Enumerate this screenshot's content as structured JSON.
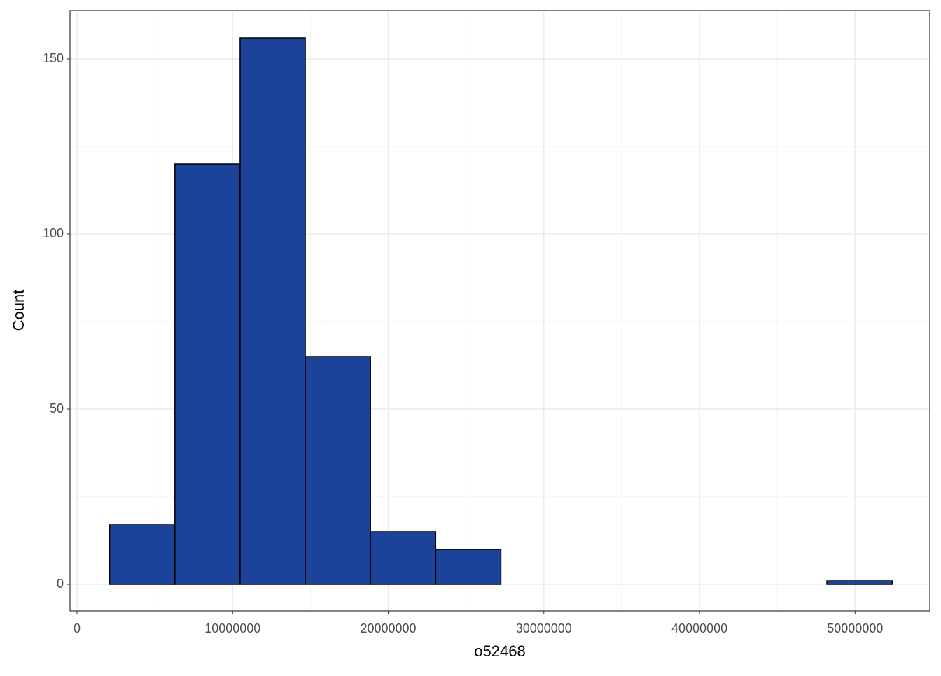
{
  "chart_data": {
    "type": "histogram",
    "x_label": "o52468",
    "y_label": "Count",
    "bins": [
      2100000,
      6290000,
      10480000,
      14670000,
      18860000,
      23050000,
      27240000,
      31430000,
      35620000,
      39810000,
      44000000,
      48190000,
      52380000
    ],
    "values": [
      17,
      120,
      156,
      65,
      15,
      10,
      0,
      0,
      0,
      0,
      0,
      1
    ],
    "color": "#1a4399",
    "xlim": [
      -450000,
      54800000
    ],
    "xticks": [
      0,
      10000000,
      20000000,
      30000000,
      40000000,
      50000000
    ],
    "ylim": [
      -7.6,
      163.8
    ],
    "yticks": [
      0,
      50,
      100,
      150
    ],
    "grid": true
  }
}
